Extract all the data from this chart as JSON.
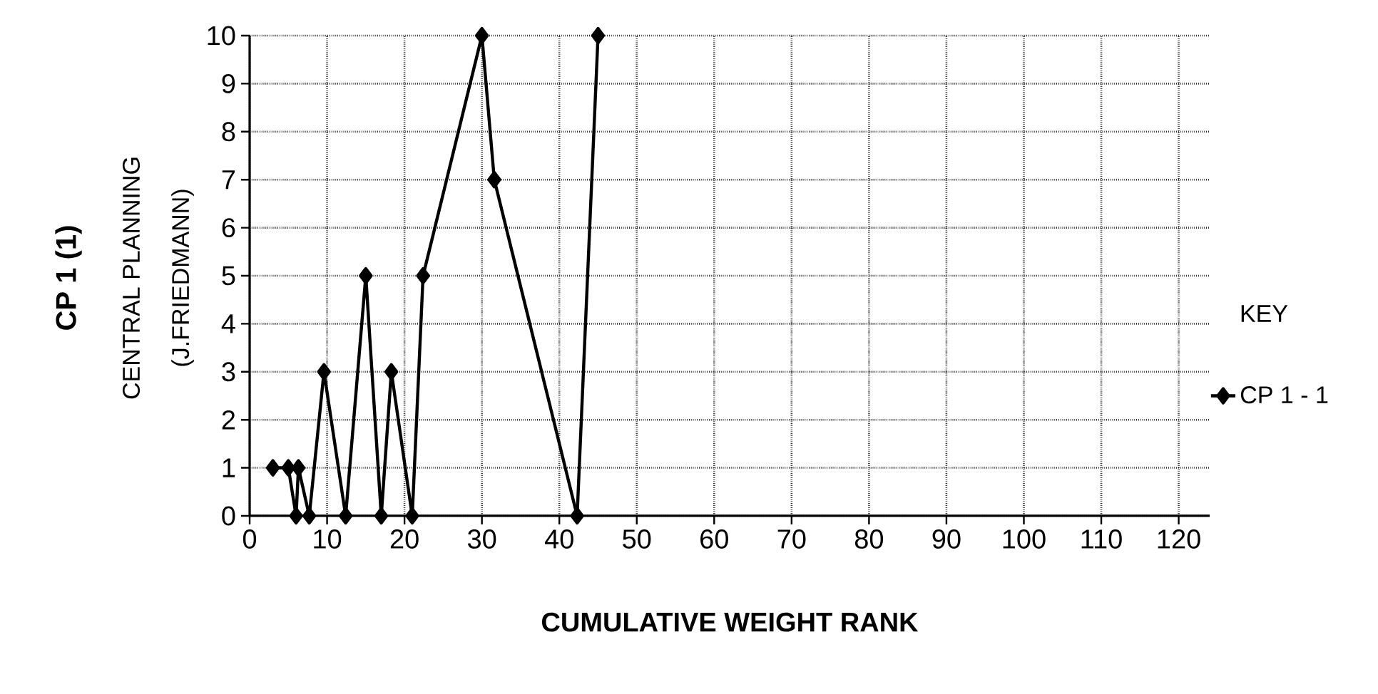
{
  "chart_data": {
    "type": "line",
    "ylabel": "CP 1 (1)",
    "xlabel": "CUMULATIVE WEIGHT RANK",
    "legend_title": "KEY",
    "annotations": [
      "CENTRAL PLANNING",
      "(J.FRIEDMANN)"
    ],
    "series": [
      {
        "name": "CP 1 - 1",
        "color": "#000000",
        "x": [
          3,
          5,
          6,
          6.3,
          7.7,
          9.6,
          12.4,
          15,
          17,
          18.3,
          21,
          22.4,
          30,
          31.6,
          42.3,
          45
        ],
        "values": [
          1,
          1,
          0,
          1,
          0,
          3,
          0,
          5,
          0,
          3,
          0,
          5,
          10,
          7,
          0,
          10
        ]
      }
    ],
    "xlim": [
      0,
      124
    ],
    "ylim": [
      0,
      10
    ],
    "xticks": [
      0,
      10,
      20,
      30,
      40,
      50,
      60,
      70,
      80,
      90,
      100,
      110,
      120
    ],
    "yticks": [
      0,
      1,
      2,
      3,
      4,
      5,
      6,
      7,
      8,
      9,
      10
    ],
    "grid": true,
    "legend": "right",
    "marker": "diamond",
    "line_style": "solid"
  }
}
